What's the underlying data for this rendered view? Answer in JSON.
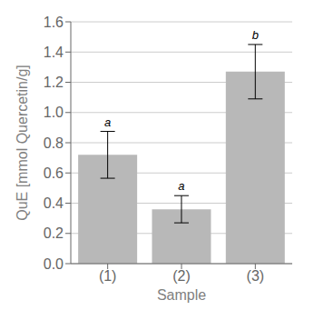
{
  "chart_data": {
    "type": "bar",
    "categories": [
      "(1)",
      "(2)",
      "(3)"
    ],
    "values": [
      0.72,
      0.36,
      1.27
    ],
    "errors": [
      0.155,
      0.09,
      0.18
    ],
    "annotations": [
      "a",
      "a",
      "b"
    ],
    "color": "#b8b8b8",
    "xlabel": "Sample",
    "ylabel": "QuE [mmol Quercetin/g]",
    "ylim": [
      0.0,
      1.6
    ],
    "yticks": [
      {
        "value": 0.0,
        "label": "0.0"
      },
      0.2,
      0.4,
      0.6,
      0.8,
      {
        "value": 1.0,
        "label": "1.0"
      },
      1.2,
      1.4,
      1.6
    ],
    "grid": true
  }
}
